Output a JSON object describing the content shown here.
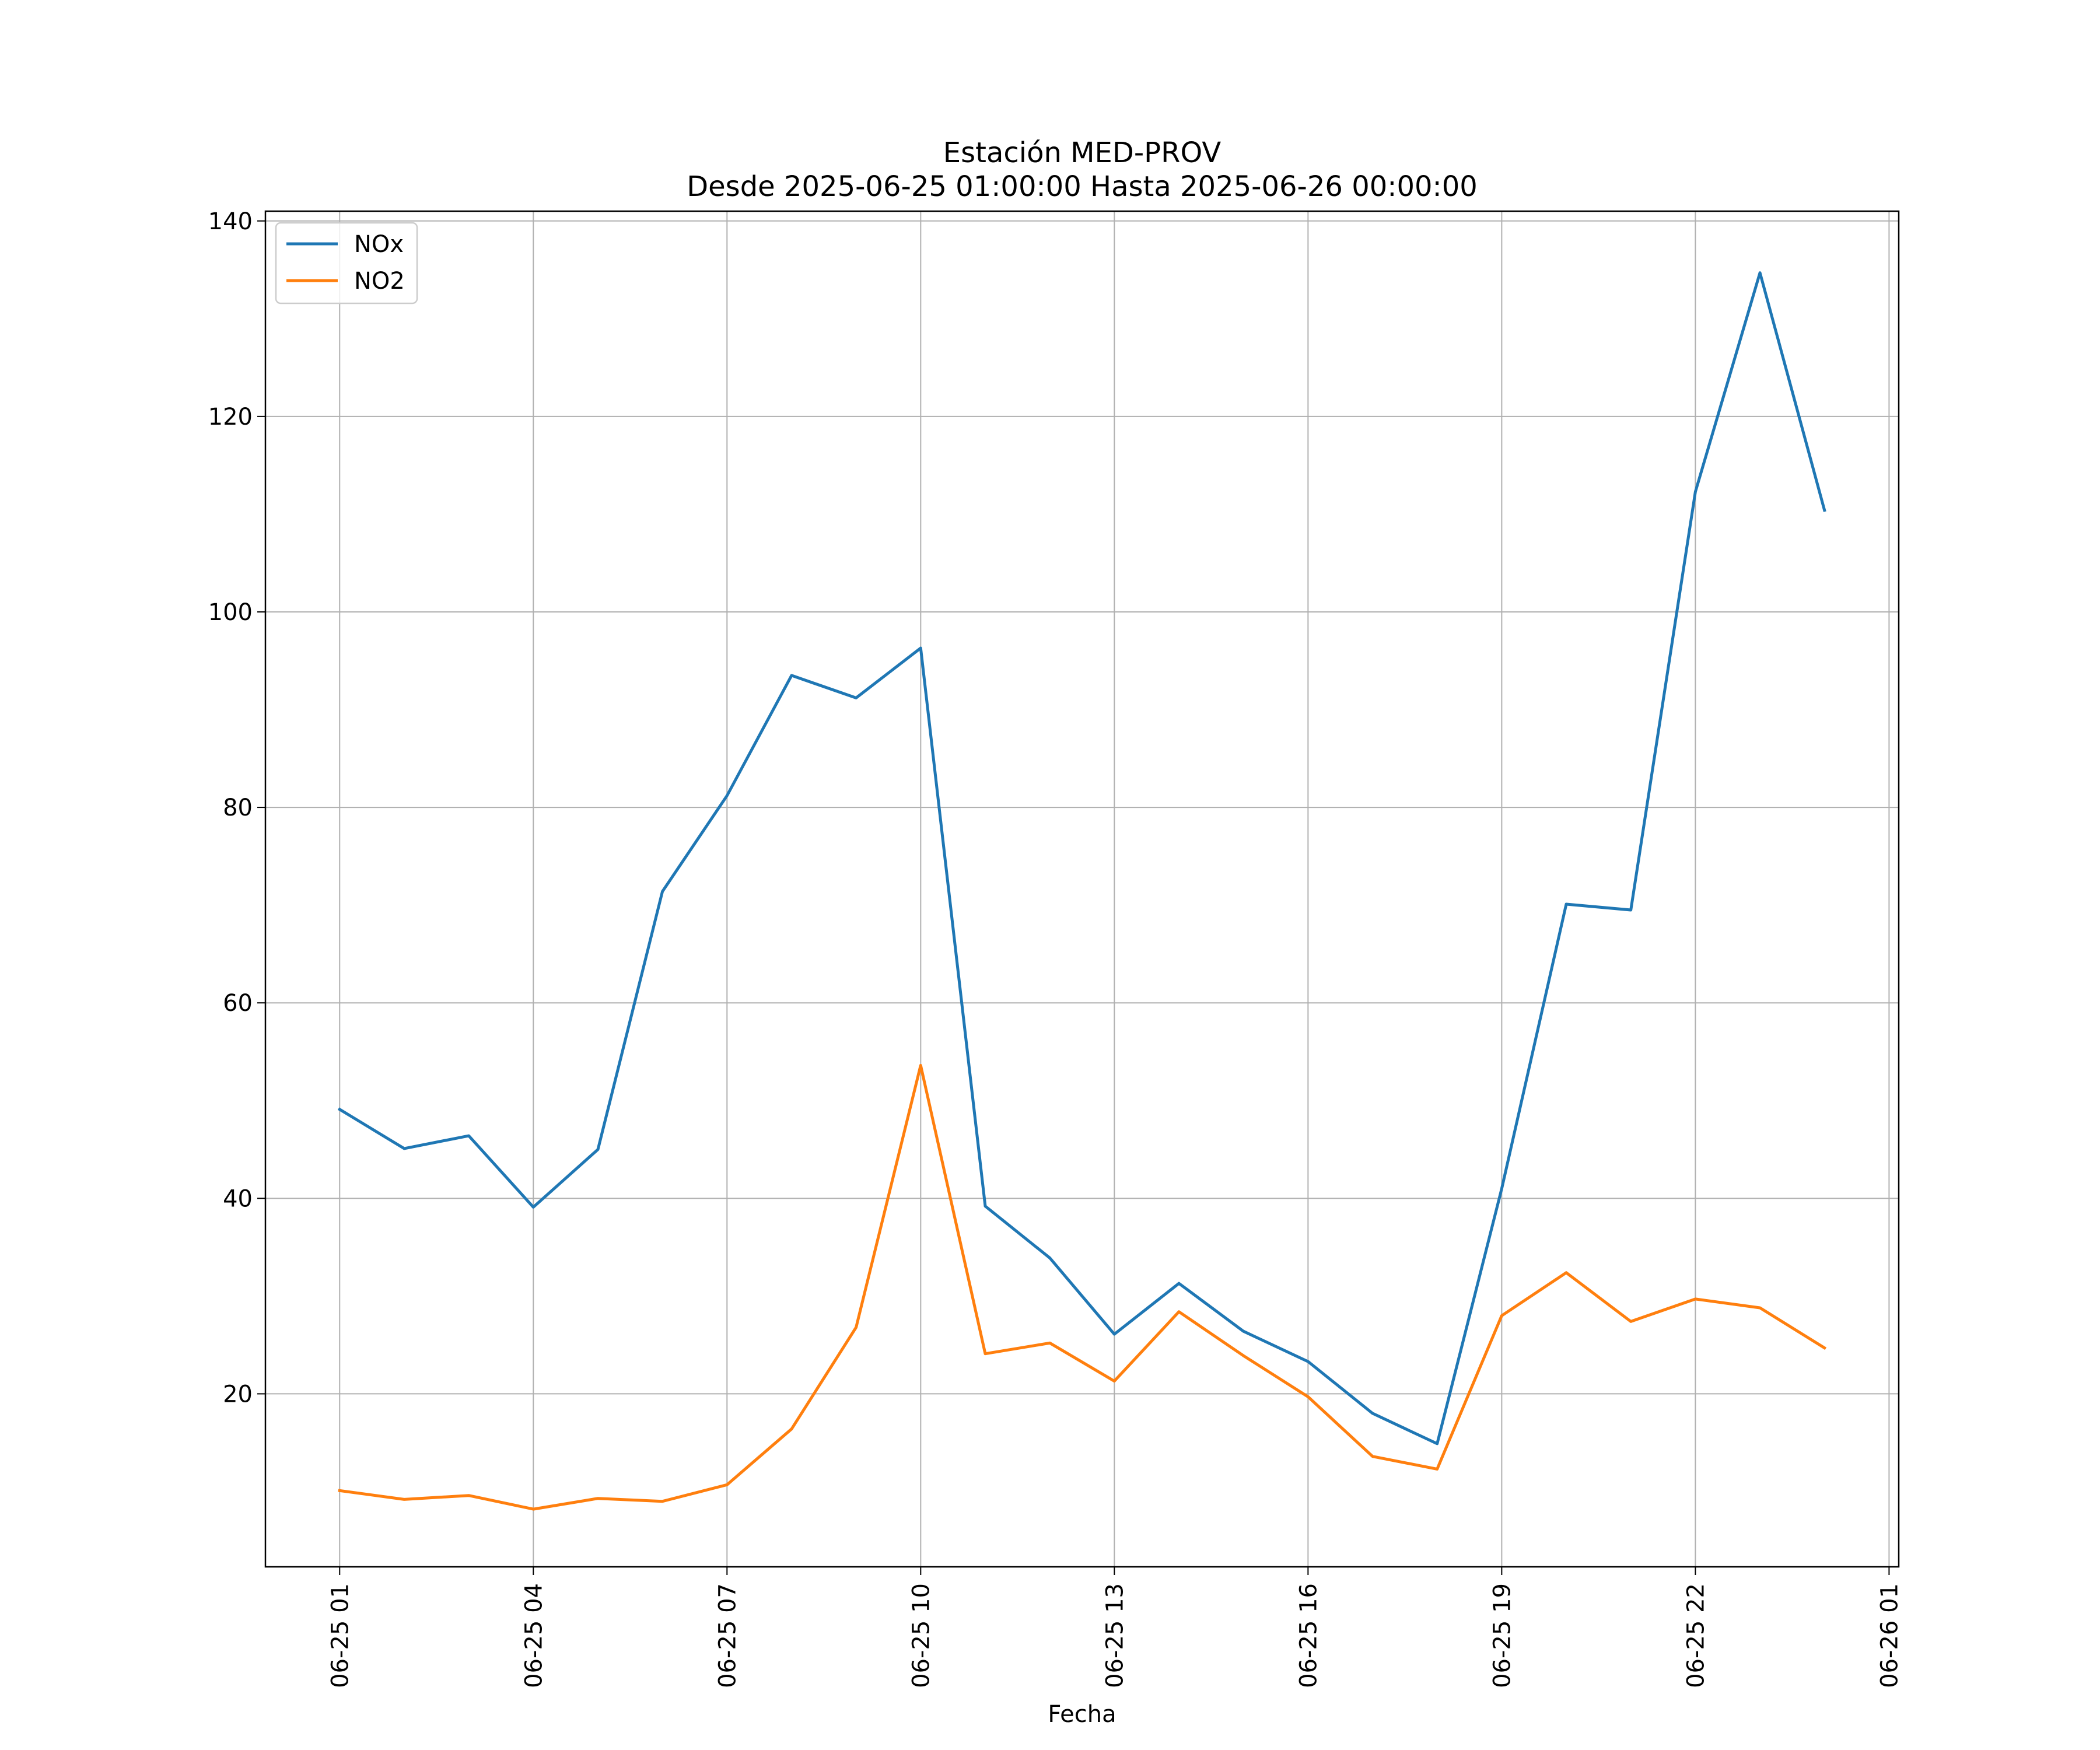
{
  "chart_data": {
    "type": "line",
    "title": "Estación MED-PROV",
    "subtitle": "Desde 2025-06-25 01:00:00 Hasta 2025-06-26 00:00:00",
    "xlabel": "Fecha",
    "ylabel": "",
    "x_type": "datetime",
    "xlim": [
      "2025-06-24 23:51:00",
      "2025-06-26 01:09:00"
    ],
    "ylim": [
      2.3,
      141
    ],
    "x_ticks": [
      "06-25 01",
      "06-25 04",
      "06-25 07",
      "06-25 10",
      "06-25 13",
      "06-25 16",
      "06-25 19",
      "06-25 22",
      "06-26 01"
    ],
    "y_ticks": [
      20,
      40,
      60,
      80,
      100,
      120,
      140
    ],
    "grid": true,
    "legend_position": "top-left",
    "x": [
      "2025-06-25 01:00",
      "2025-06-25 02:00",
      "2025-06-25 03:00",
      "2025-06-25 04:00",
      "2025-06-25 05:00",
      "2025-06-25 06:00",
      "2025-06-25 07:00",
      "2025-06-25 08:00",
      "2025-06-25 09:00",
      "2025-06-25 10:00",
      "2025-06-25 11:00",
      "2025-06-25 12:00",
      "2025-06-25 13:00",
      "2025-06-25 14:00",
      "2025-06-25 15:00",
      "2025-06-25 16:00",
      "2025-06-25 17:00",
      "2025-06-25 18:00",
      "2025-06-25 19:00",
      "2025-06-25 20:00",
      "2025-06-25 21:00",
      "2025-06-25 22:00",
      "2025-06-25 23:00",
      "2025-06-26 00:00"
    ],
    "series": [
      {
        "name": "NOx",
        "color": "#1f77b4",
        "values": [
          49.1,
          45.1,
          46.4,
          39.1,
          45.0,
          71.4,
          81.2,
          93.5,
          91.2,
          96.3,
          39.2,
          33.9,
          26.1,
          31.3,
          26.4,
          23.3,
          18.0,
          14.9,
          41.0,
          70.1,
          69.5,
          112.3,
          134.7,
          110.4
        ]
      },
      {
        "name": "NO2",
        "color": "#ff7f0e",
        "values": [
          10.1,
          9.2,
          9.6,
          8.2,
          9.3,
          9.0,
          10.7,
          16.4,
          26.8,
          53.6,
          24.1,
          25.2,
          21.3,
          28.4,
          23.9,
          19.7,
          13.6,
          12.3,
          28.0,
          32.4,
          27.4,
          29.7,
          28.8,
          24.7
        ]
      }
    ]
  }
}
